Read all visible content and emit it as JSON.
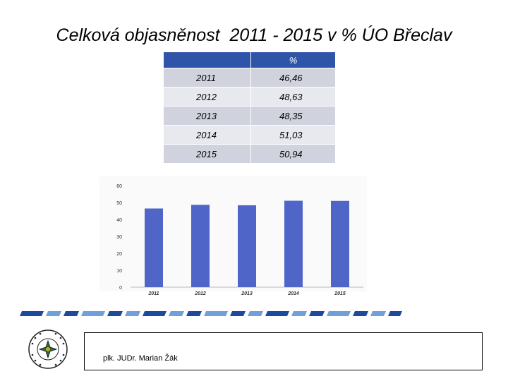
{
  "title": "Celková objasněnost  2011 - 2015 v % ÚO Břeclav",
  "table": {
    "header": [
      "",
      "%"
    ],
    "rows": [
      {
        "year": "2011",
        "value": "46,46"
      },
      {
        "year": "2012",
        "value": "48,63"
      },
      {
        "year": "2013",
        "value": "48,35"
      },
      {
        "year": "2014",
        "value": "51,03"
      },
      {
        "year": "2015",
        "value": "50,94"
      }
    ]
  },
  "chart_data": {
    "type": "bar",
    "categories": [
      "2011",
      "2012",
      "2013",
      "2014",
      "2015"
    ],
    "values": [
      46.46,
      48.63,
      48.35,
      51.03,
      50.94
    ],
    "ylim": [
      0,
      60
    ],
    "yticks": [
      0,
      10,
      20,
      30,
      40,
      50,
      60
    ],
    "grid": false,
    "bar_color": "#5065c8"
  },
  "footer": {
    "author": "plk. JUDr. Marian Žák",
    "logo_icon": "police-badge-icon",
    "logo_text": "POLICIE ČESKÉ REPUBLIKY"
  },
  "colors": {
    "header_blue": "#2e55a9",
    "row_dark": "#d0d3dd",
    "row_light": "#e8e9ef"
  }
}
